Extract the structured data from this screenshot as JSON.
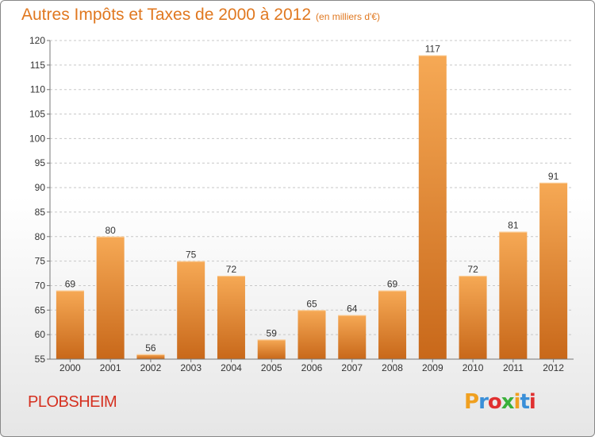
{
  "header": {
    "title": "Autres Impôts et Taxes de 2000 à 2012",
    "subtitle": "(en milliers d'€)"
  },
  "footer": {
    "commune": "PLOBSHEIM",
    "logo": [
      "P",
      "r",
      "o",
      "x",
      "i",
      "t",
      "i"
    ],
    "logo_colors": [
      "#f0a020",
      "#3a8fd8",
      "#e03030",
      "#3ab03a",
      "#f0a020",
      "#3a8fd8",
      "#e03030"
    ]
  },
  "colors": {
    "bar_top": "#f6a955",
    "bar_bottom": "#c8681a",
    "title": "#e07820",
    "commune": "#d53020",
    "axis": "#777777"
  },
  "chart_data": {
    "type": "bar",
    "categories": [
      "2000",
      "2001",
      "2002",
      "2003",
      "2004",
      "2005",
      "2006",
      "2007",
      "2008",
      "2009",
      "2010",
      "2011",
      "2012"
    ],
    "values": [
      69,
      80,
      56,
      75,
      72,
      59,
      65,
      64,
      69,
      117,
      72,
      81,
      91
    ],
    "ylim": [
      55,
      120
    ],
    "yticks": [
      55,
      60,
      65,
      70,
      75,
      80,
      85,
      90,
      95,
      100,
      105,
      110,
      115,
      120
    ],
    "grid": "horizontal dashed"
  }
}
